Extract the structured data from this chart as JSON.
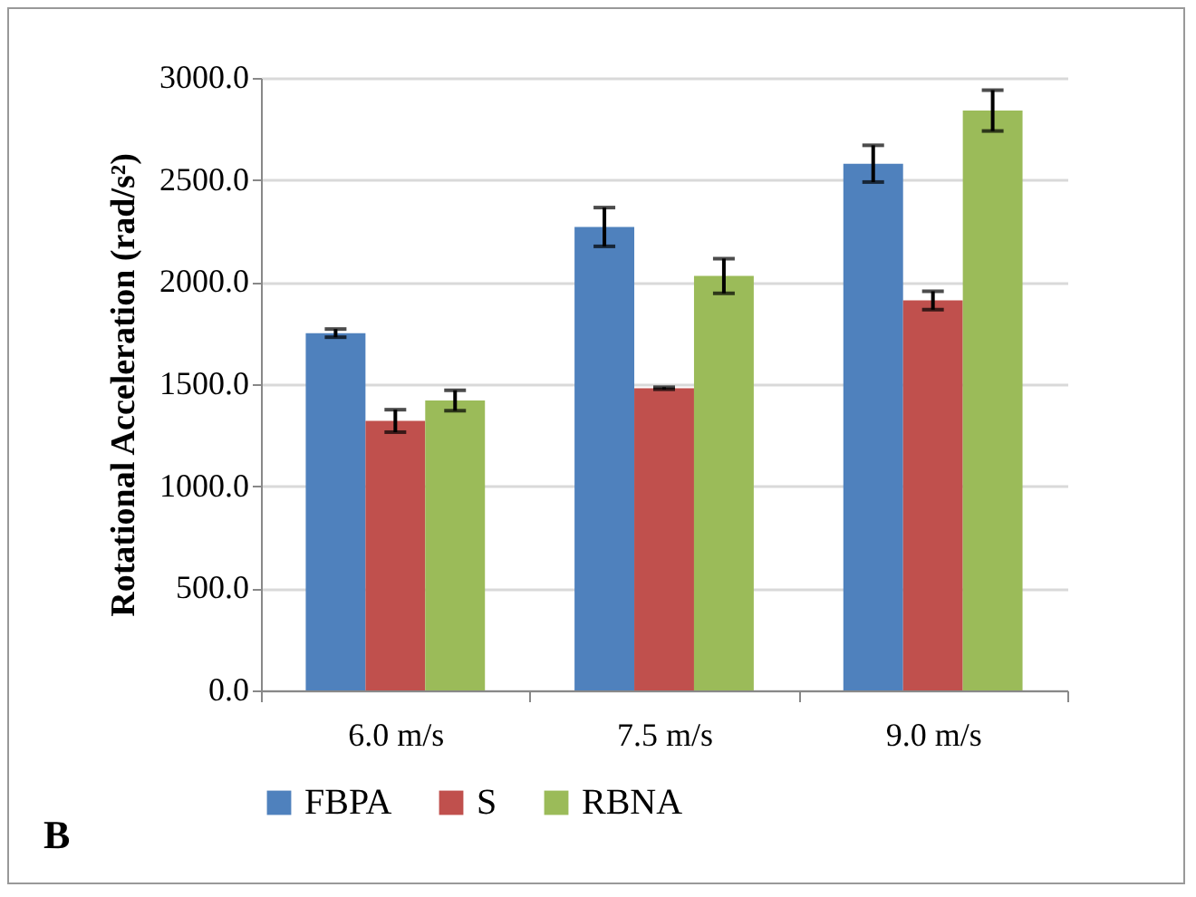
{
  "chart_data": {
    "type": "bar",
    "ylabel": "Rotational Acceleration (rad/s²)",
    "categories": [
      "6.0 m/s",
      "7.5 m/s",
      "9.0 m/s"
    ],
    "series": [
      {
        "name": "FBPA",
        "color": "#4f81bd",
        "values": [
          1750,
          2270,
          2580
        ],
        "errors": [
          20,
          95,
          90
        ]
      },
      {
        "name": "S",
        "color": "#c0504d",
        "values": [
          1320,
          1480,
          1910
        ],
        "errors": [
          55,
          5,
          45
        ]
      },
      {
        "name": "RBNA",
        "color": "#9bbb59",
        "values": [
          1420,
          2030,
          2840
        ],
        "errors": [
          50,
          85,
          100
        ]
      }
    ],
    "ylim": [
      0,
      3000
    ],
    "yticks": [
      {
        "value": 0,
        "label": "0.0"
      },
      {
        "value": 500,
        "label": "500.0"
      },
      {
        "value": 1000,
        "label": "1000.0"
      },
      {
        "value": 1500,
        "label": "1500.0"
      },
      {
        "value": 2000,
        "label": "2000.0"
      },
      {
        "value": 2500,
        "label": "2500.0"
      },
      {
        "value": 3000,
        "label": "3000.0"
      }
    ],
    "grid": "y",
    "legend": "bottom",
    "annotations": [
      "B"
    ]
  }
}
